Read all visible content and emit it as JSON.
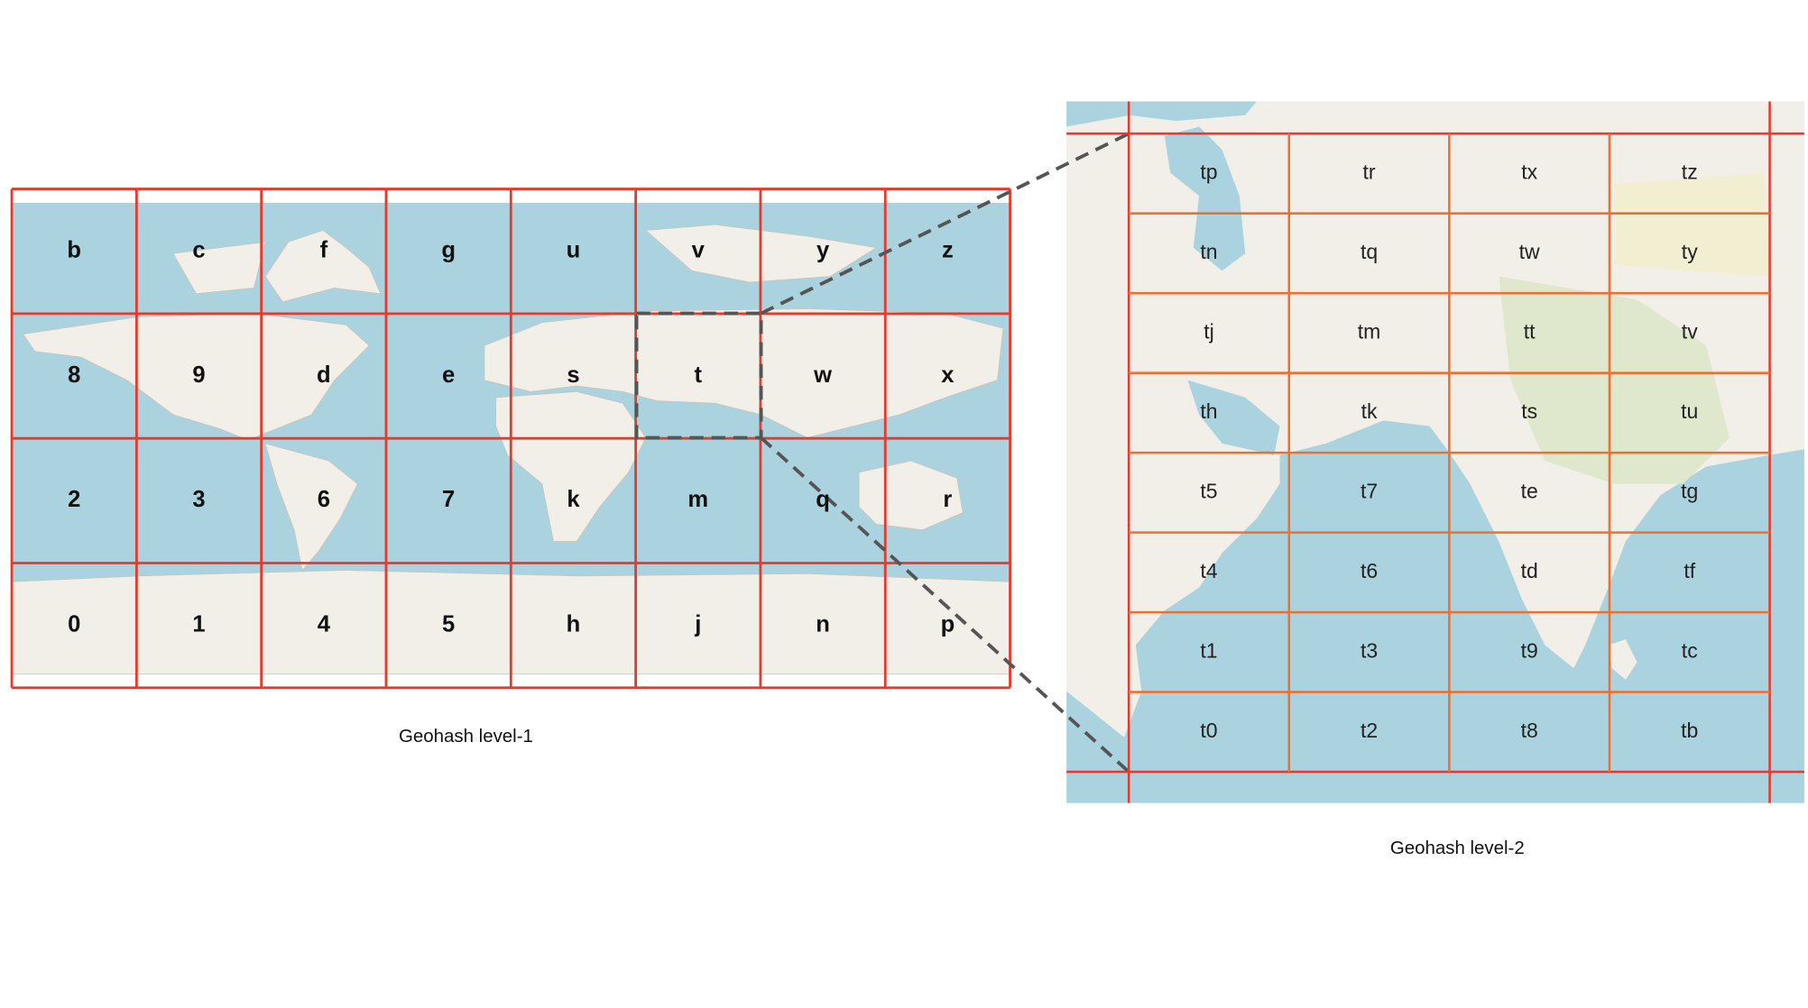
{
  "level1": {
    "caption": "Geohash level-1",
    "rows": [
      [
        "b",
        "c",
        "f",
        "g",
        "u",
        "v",
        "y",
        "z"
      ],
      [
        "8",
        "9",
        "d",
        "e",
        "s",
        "t",
        "w",
        "x"
      ],
      [
        "2",
        "3",
        "6",
        "7",
        "k",
        "m",
        "q",
        "r"
      ],
      [
        "0",
        "1",
        "4",
        "5",
        "h",
        "j",
        "n",
        "p"
      ]
    ]
  },
  "level2": {
    "caption": "Geohash level-2",
    "rows": [
      [
        "tp",
        "tr",
        "tx",
        "tz"
      ],
      [
        "tn",
        "tq",
        "tw",
        "ty"
      ],
      [
        "tj",
        "tm",
        "tt",
        "tv"
      ],
      [
        "th",
        "tk",
        "ts",
        "tu"
      ],
      [
        "t5",
        "t7",
        "te",
        "tg"
      ],
      [
        "t4",
        "t6",
        "td",
        "tf"
      ],
      [
        "t1",
        "t3",
        "t9",
        "tc"
      ],
      [
        "t0",
        "t2",
        "t8",
        "tb"
      ]
    ]
  }
}
